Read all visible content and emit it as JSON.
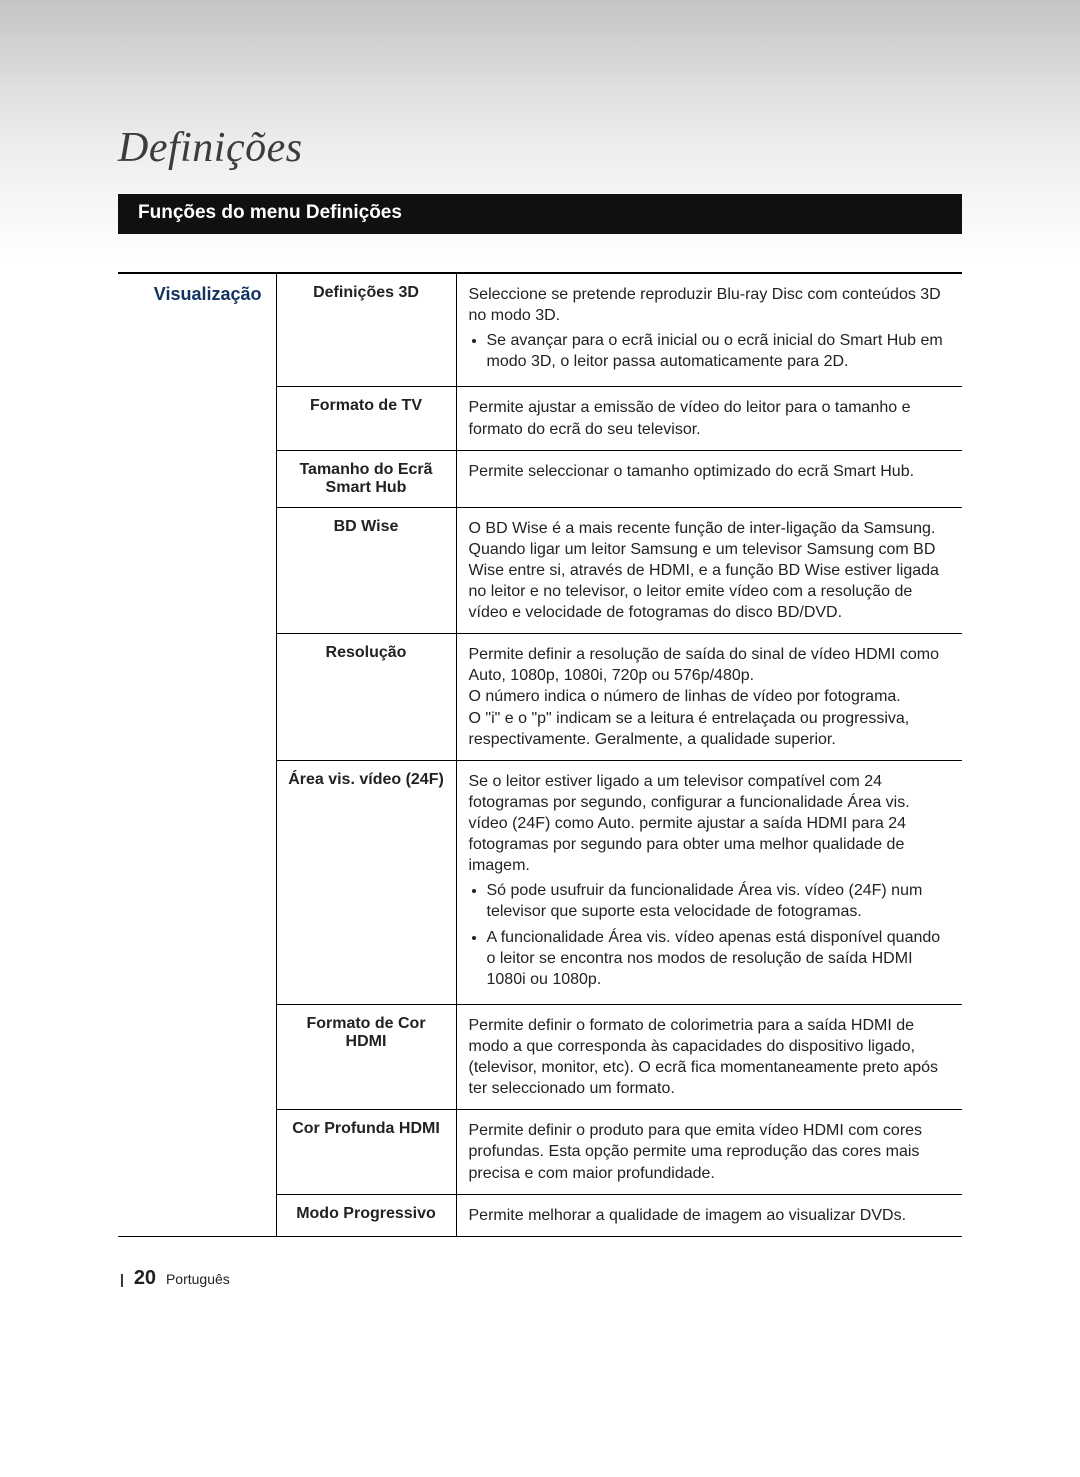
{
  "title": "Definições",
  "section_bar": "Funções do menu Definições",
  "category_label": "Visualização",
  "colors": {
    "category_text": "#12335f",
    "section_bar_bg": "#101010",
    "section_bar_text": "#ffffff",
    "border": "#000000",
    "header_grad_top": "#c3c4c6",
    "header_grad_bottom": "#ffffff"
  },
  "rows": [
    {
      "sub": "Definições 3D",
      "desc_p": "Seleccione se pretende reproduzir Blu-ray Disc com conteúdos 3D no modo 3D.",
      "bullets": [
        "Se avançar para o ecrã inicial ou o ecrã inicial do Smart Hub em modo 3D, o leitor passa automaticamente para 2D."
      ]
    },
    {
      "sub": "Formato de TV",
      "desc_p": "Permite ajustar a emissão de vídeo do leitor para o tamanho e formato do ecrã do seu televisor.",
      "bullets": []
    },
    {
      "sub": "Tamanho do Ecrã Smart Hub",
      "desc_p": "Permite seleccionar o tamanho optimizado do ecrã Smart Hub.",
      "bullets": []
    },
    {
      "sub": "BD Wise",
      "desc_p": "O BD Wise é a mais recente função de inter-ligação da Samsung.\nQuando ligar um leitor Samsung e um televisor Samsung com BD Wise entre si, através de HDMI, e a função BD Wise estiver ligada no leitor e no televisor, o leitor emite vídeo com a resolução de vídeo e velocidade de fotogramas do disco BD/DVD.",
      "bullets": []
    },
    {
      "sub": "Resolução",
      "desc_p": "Permite definir a resolução de saída do sinal de vídeo HDMI como Auto, 1080p, 1080i, 720p ou 576p/480p.\nO número indica o número de linhas de vídeo por fotograma.\nO \"i\" e o \"p\" indicam se a leitura é entrelaçada ou progressiva, respectivamente. Geralmente, a qualidade superior.",
      "bullets": []
    },
    {
      "sub": "Área vis. vídeo (24F)",
      "desc_p": "Se o leitor estiver ligado a um televisor compatível com 24 fotogramas por segundo, configurar a funcionalidade Área vis. vídeo (24F) como Auto. permite ajustar a saída HDMI para 24 fotogramas por segundo para obter uma melhor qualidade de imagem.",
      "bullets": [
        "Só pode usufruir da funcionalidade Área vis. vídeo (24F) num televisor que suporte esta velocidade de fotogramas.",
        "A funcionalidade Área vis. vídeo apenas está disponível quando o leitor se encontra nos modos de resolução de saída HDMI 1080i ou 1080p."
      ]
    },
    {
      "sub": "Formato de Cor HDMI",
      "desc_p": "Permite definir o formato de colorimetria para a saída HDMI de modo a que corresponda às capacidades do dispositivo ligado, (televisor, monitor, etc). O ecrã fica momentaneamente preto após ter seleccionado um formato.",
      "bullets": []
    },
    {
      "sub": "Cor Profunda HDMI",
      "desc_p": "Permite definir o produto para que emita vídeo HDMI com cores profundas. Esta opção permite uma reprodução das cores mais precisa e com maior profundidade.",
      "bullets": []
    },
    {
      "sub": "Modo Progressivo",
      "desc_p": "Permite melhorar a qualidade de imagem ao visualizar DVDs.",
      "bullets": []
    }
  ],
  "footer": {
    "page_number": "20",
    "language": "Português"
  }
}
